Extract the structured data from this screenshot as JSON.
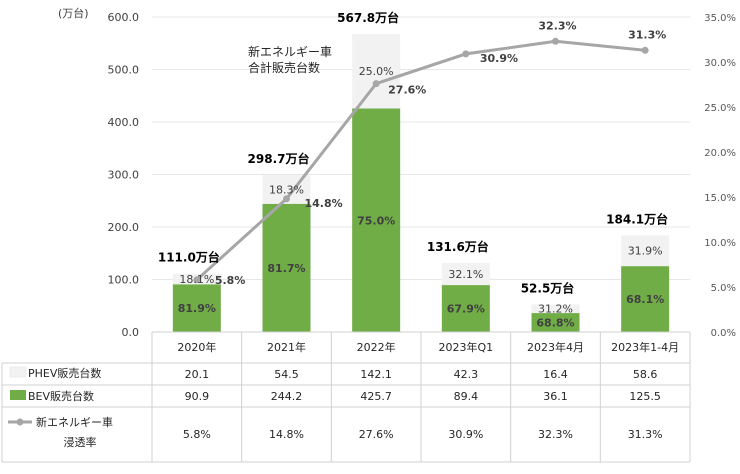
{
  "chart_data": {
    "type": "bar",
    "stacked": true,
    "y_unit_label": "(万台)",
    "ylim": [
      0,
      600
    ],
    "yticks": [
      "0.0",
      "100.0",
      "200.0",
      "300.0",
      "400.0",
      "500.0",
      "600.0"
    ],
    "y2lim": [
      0,
      35
    ],
    "y2ticks": [
      "0.0%",
      "5.0%",
      "10.0%",
      "15.0%",
      "20.0%",
      "25.0%",
      "30.0%",
      "35.0%"
    ],
    "categories": [
      "2020年",
      "2021年",
      "2022年",
      "2023年Q1",
      "2023年4月",
      "2023年1-4月"
    ],
    "series": [
      {
        "name": "PHEV販売台数",
        "values": [
          20.1,
          54.5,
          142.1,
          42.3,
          16.4,
          58.6
        ],
        "table_values": [
          "20.1",
          "54.5",
          "142.1",
          "42.3",
          "16.4",
          "58.6"
        ],
        "share_labels": [
          "18.1%",
          "18.3%",
          "25.0%",
          "32.1%",
          "31.2%",
          "31.9%"
        ],
        "color": "#f2f2f2"
      },
      {
        "name": "BEV販売台数",
        "values": [
          90.9,
          244.2,
          425.7,
          89.4,
          36.1,
          125.5
        ],
        "table_values": [
          "90.9",
          "244.2",
          "425.7",
          "89.4",
          "36.1",
          "125.5"
        ],
        "share_labels": [
          "81.9%",
          "81.7%",
          "75.0%",
          "67.9%",
          "68.8%",
          "68.1%"
        ],
        "color": "#70ad47"
      }
    ],
    "line": {
      "name_line1": "新エネルギー車",
      "name_line2": "浸透率",
      "values": [
        5.8,
        14.8,
        27.6,
        30.9,
        32.3,
        31.3
      ],
      "labels": [
        "5.8%",
        "14.8%",
        "27.6%",
        "30.9%",
        "32.3%",
        "31.3%"
      ],
      "color": "#a6a6a6"
    },
    "totals": [
      "111.0万台",
      "298.7万台",
      "567.8万台",
      "131.6万台",
      "52.5万台",
      "184.1万台"
    ],
    "annotation_line1": "新エネルギー車",
    "annotation_line2": "合計販売台数",
    "legend": "table"
  }
}
